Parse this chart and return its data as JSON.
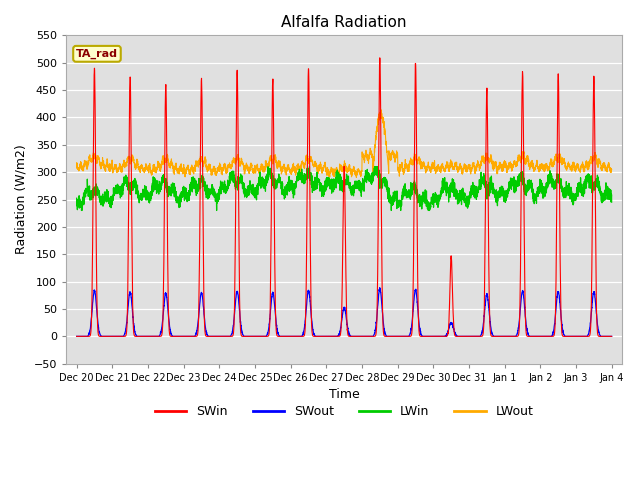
{
  "title": "Alfalfa Radiation",
  "ylabel": "Radiation (W/m2)",
  "xlabel": "Time",
  "ylim": [
    -50,
    550
  ],
  "annotation": "TA_rad",
  "background_color": "#e0e0e0",
  "tick_labels": [
    "Dec 20",
    "Dec 21",
    "Dec 22",
    "Dec 23",
    "Dec 24",
    "Dec 25",
    "Dec 26",
    "Dec 27",
    "Dec 28",
    "Dec 29",
    "Dec 30",
    "Dec 31",
    "Jan 1",
    "Jan 2",
    "Jan 3",
    "Jan 4"
  ],
  "yticks": [
    -50,
    0,
    50,
    100,
    150,
    200,
    250,
    300,
    350,
    400,
    450,
    500,
    550
  ],
  "colors": {
    "SWin": "#ff0000",
    "SWout": "#0000ff",
    "LWin": "#00cc00",
    "LWout": "#ffaa00"
  },
  "sw_peaks": [
    490,
    475,
    460,
    470,
    485,
    470,
    490,
    310,
    510,
    500,
    145,
    450,
    485,
    480,
    475
  ],
  "sw_sigma": 0.035,
  "sw_ratio": 0.17,
  "lw_base": 265,
  "lw_noise": 8,
  "lwout_base": 305,
  "lwout_bump_peak_day": 8,
  "lwout_bump_max": 405
}
